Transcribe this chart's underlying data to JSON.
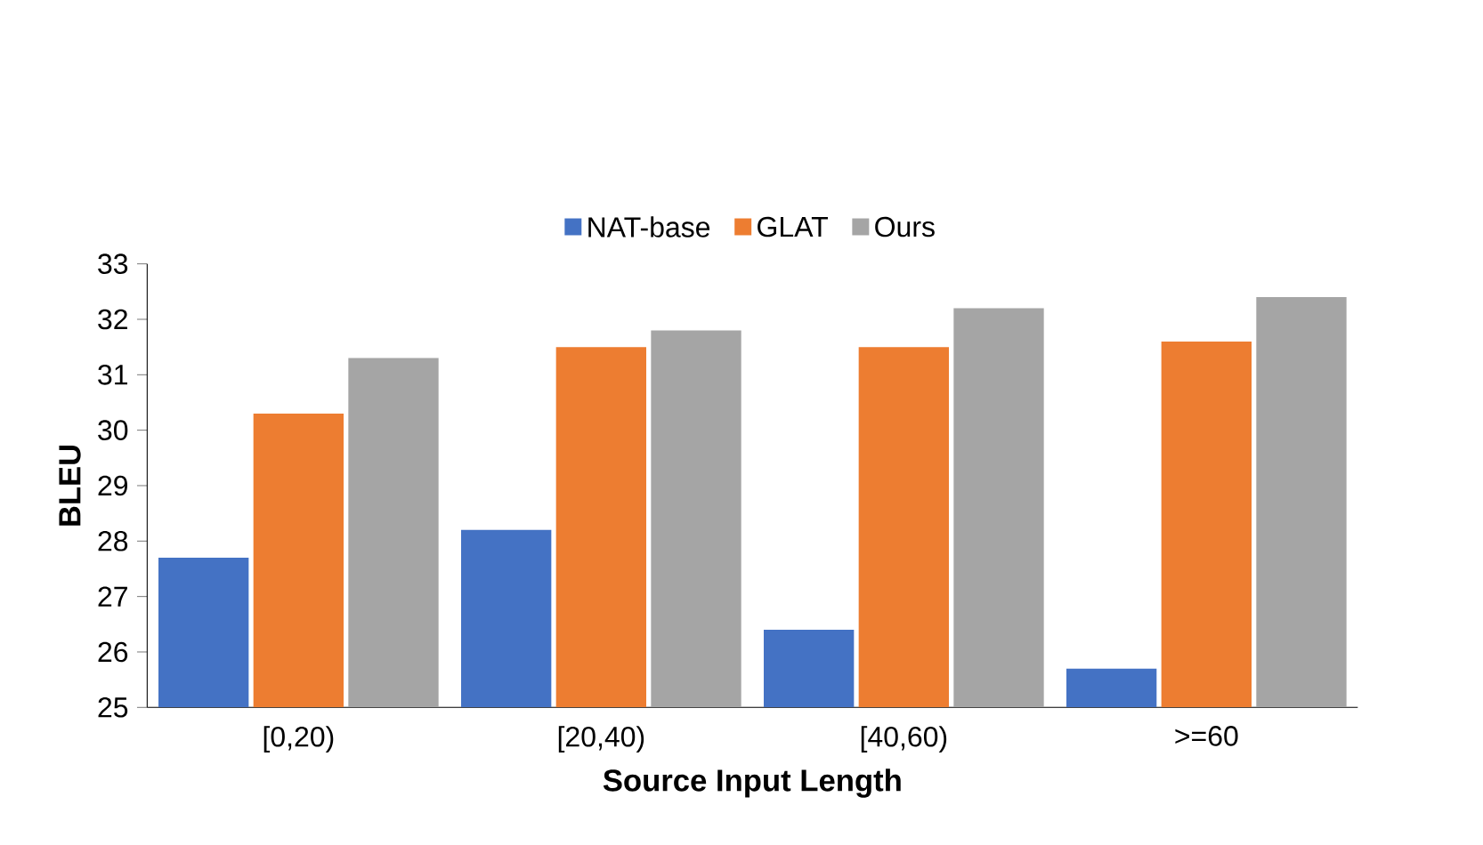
{
  "chart_data": {
    "type": "bar",
    "xlabel": "Source Input Length",
    "ylabel": "BLEU",
    "categories": [
      "[0,20)",
      "[20,40)",
      "[40,60)",
      ">=60"
    ],
    "series": [
      {
        "name": "NAT-base",
        "color": "#4472c4",
        "values": [
          27.7,
          28.2,
          26.4,
          25.7
        ]
      },
      {
        "name": "GLAT",
        "color": "#ed7d31",
        "values": [
          30.3,
          31.5,
          31.5,
          31.6
        ]
      },
      {
        "name": "Ours",
        "color": "#a5a5a5",
        "values": [
          31.3,
          31.8,
          32.2,
          32.4
        ]
      }
    ],
    "ylim": [
      25,
      33
    ],
    "yticks": [
      25,
      26,
      27,
      28,
      29,
      30,
      31,
      32,
      33
    ],
    "grid": false,
    "legend": "top"
  }
}
